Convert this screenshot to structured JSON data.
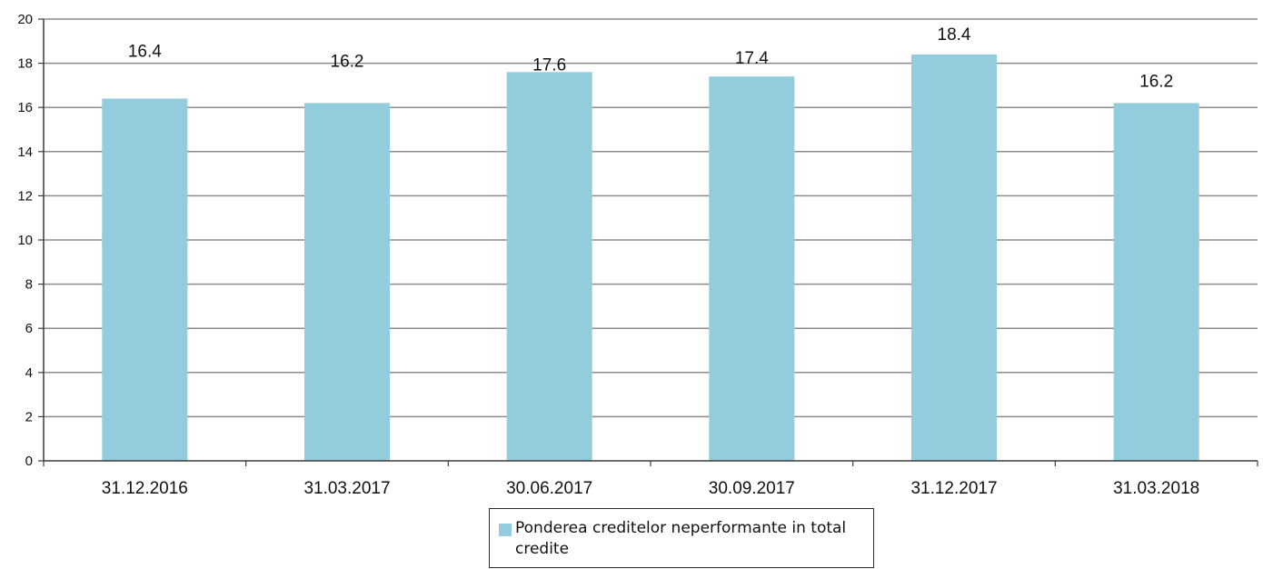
{
  "chart_data": {
    "type": "bar",
    "categories": [
      "31.12.2016",
      "31.03.2017",
      "30.06.2017",
      "30.09.2017",
      "31.12.2017",
      "31.03.2018"
    ],
    "series": [
      {
        "name": "Ponderea creditelor neperformante in total credite",
        "values": [
          16.4,
          16.2,
          17.6,
          17.4,
          18.4,
          16.2
        ],
        "color": "#93CCDC"
      }
    ],
    "data_labels": [
      "16.4",
      "16.2",
      "17.6",
      "17.4",
      "18.4",
      "16.2"
    ],
    "y_ticks": [
      "0",
      "2",
      "4",
      "6",
      "8",
      "10",
      "12",
      "14",
      "16",
      "18",
      "20"
    ],
    "ylim": [
      0,
      20
    ],
    "grid": true,
    "legend_position": "bottom",
    "title": "",
    "xlabel": "",
    "ylabel": ""
  },
  "legend": {
    "label": "Ponderea creditelor neperformante in total credite"
  },
  "colors": {
    "bar": "#93CCDC",
    "grid": "#8c8c8c",
    "axis": "#3c3c3c"
  }
}
